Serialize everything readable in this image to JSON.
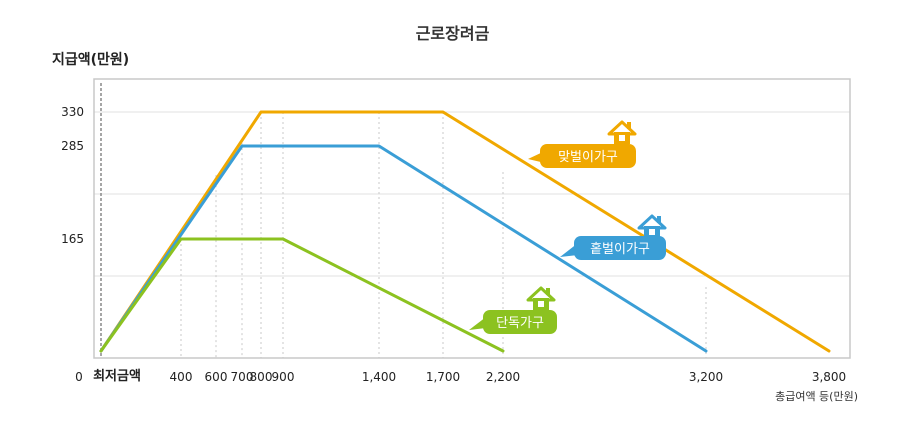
{
  "chart_data": {
    "type": "line",
    "title": "근로장려금",
    "ylabel": "지급액(만원)",
    "xlabel": "총급여액 등(만원)",
    "zero_label": "0",
    "min_wage_label": "최저금액",
    "y_ticks": [
      {
        "value": 165,
        "label": "165"
      },
      {
        "value": 285,
        "label": "285"
      },
      {
        "value": 330,
        "label": "330"
      }
    ],
    "x_ticks": [
      {
        "value": 400,
        "label": "400"
      },
      {
        "value": 600,
        "label": "600"
      },
      {
        "value": 700,
        "label": "700"
      },
      {
        "value": 800,
        "label": "800"
      },
      {
        "value": 900,
        "label": "900"
      },
      {
        "value": 1400,
        "label": "1,400"
      },
      {
        "value": 1700,
        "label": "1,700"
      },
      {
        "value": 2200,
        "label": "2,200"
      },
      {
        "value": 3200,
        "label": "3,200"
      },
      {
        "value": 3800,
        "label": "3,800"
      }
    ],
    "xlim": [
      0,
      3800
    ],
    "ylim": [
      0,
      330
    ],
    "series": [
      {
        "name": "맞벌이가구",
        "color": "#f0a800",
        "points": [
          [
            0,
            0
          ],
          [
            800,
            330
          ],
          [
            1700,
            330
          ],
          [
            3800,
            0
          ]
        ]
      },
      {
        "name": "홑벌이가구",
        "color": "#3a9ed6",
        "points": [
          [
            0,
            0
          ],
          [
            700,
            285
          ],
          [
            1400,
            285
          ],
          [
            3200,
            0
          ]
        ]
      },
      {
        "name": "단독가구",
        "color": "#8cc220",
        "points": [
          [
            0,
            0
          ],
          [
            400,
            165
          ],
          [
            900,
            165
          ],
          [
            2200,
            0
          ]
        ]
      }
    ],
    "grid": true
  }
}
